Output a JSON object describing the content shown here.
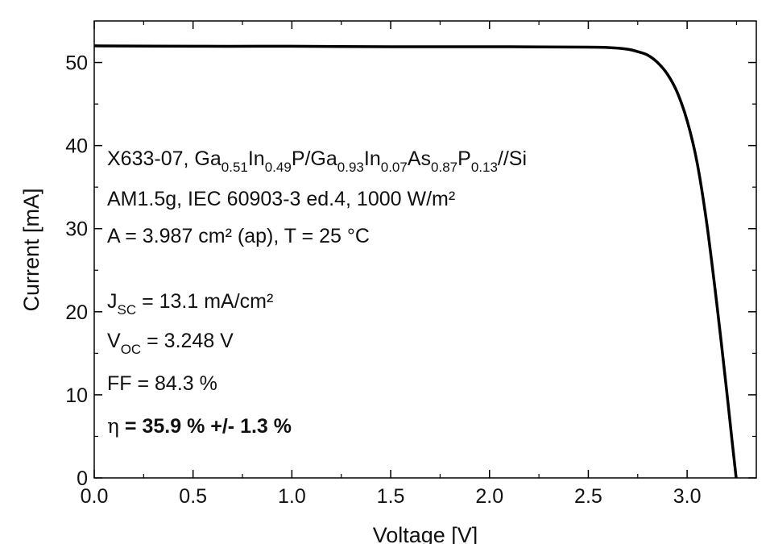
{
  "chart_data": {
    "type": "line",
    "xlabel": "Voltage [V]",
    "ylabel": "Current [mA]",
    "xlim": [
      0.0,
      3.35
    ],
    "ylim": [
      0,
      55
    ],
    "x_ticks": [
      "0.0",
      "0.5",
      "1.0",
      "1.5",
      "2.0",
      "2.5",
      "3.0"
    ],
    "y_ticks": [
      "0",
      "10",
      "20",
      "30",
      "40",
      "50"
    ],
    "grid": false,
    "legend": "none",
    "line_color": "#000000",
    "series": [
      {
        "x": [
          0.0,
          0.5,
          1.0,
          1.5,
          2.0,
          2.5,
          2.6,
          2.7,
          2.75,
          2.8,
          2.85,
          2.9,
          2.95,
          3.0,
          3.05,
          3.1,
          3.15,
          3.2,
          3.225,
          3.248
        ],
        "y": [
          52.0,
          51.95,
          51.95,
          51.9,
          51.9,
          51.85,
          51.8,
          51.6,
          51.3,
          50.9,
          50.0,
          48.6,
          46.4,
          43.0,
          38.0,
          30.5,
          21.0,
          10.5,
          5.0,
          0.0
        ]
      }
    ],
    "annotations": {
      "sample_prefix": "X633-07,  Ga",
      "s1": "0.51",
      "t1": "In",
      "s2": "0.49",
      "t2": "P/Ga",
      "s3": "0.93",
      "t3": "In",
      "s4": "0.07",
      "t4": "As",
      "s5": "0.87",
      "t5": "P",
      "s6": "0.13",
      "t6": "//Si",
      "conditions": "AM1.5g, IEC 60903-3 ed.4, 1000 W/m²",
      "area_temp": "A = 3.987 cm² (ap), T = 25 °C",
      "jsc_sym": "J",
      "jsc_sub": "SC",
      "jsc_val": " = 13.1 mA/cm²",
      "voc_sym": "V",
      "voc_sub": "OC",
      "voc_val": " = 3.248 V",
      "ff": "FF = 84.3 %",
      "eta_sym": "η",
      "eta_val": " = 35.9 % +/- 1.3 %"
    }
  }
}
